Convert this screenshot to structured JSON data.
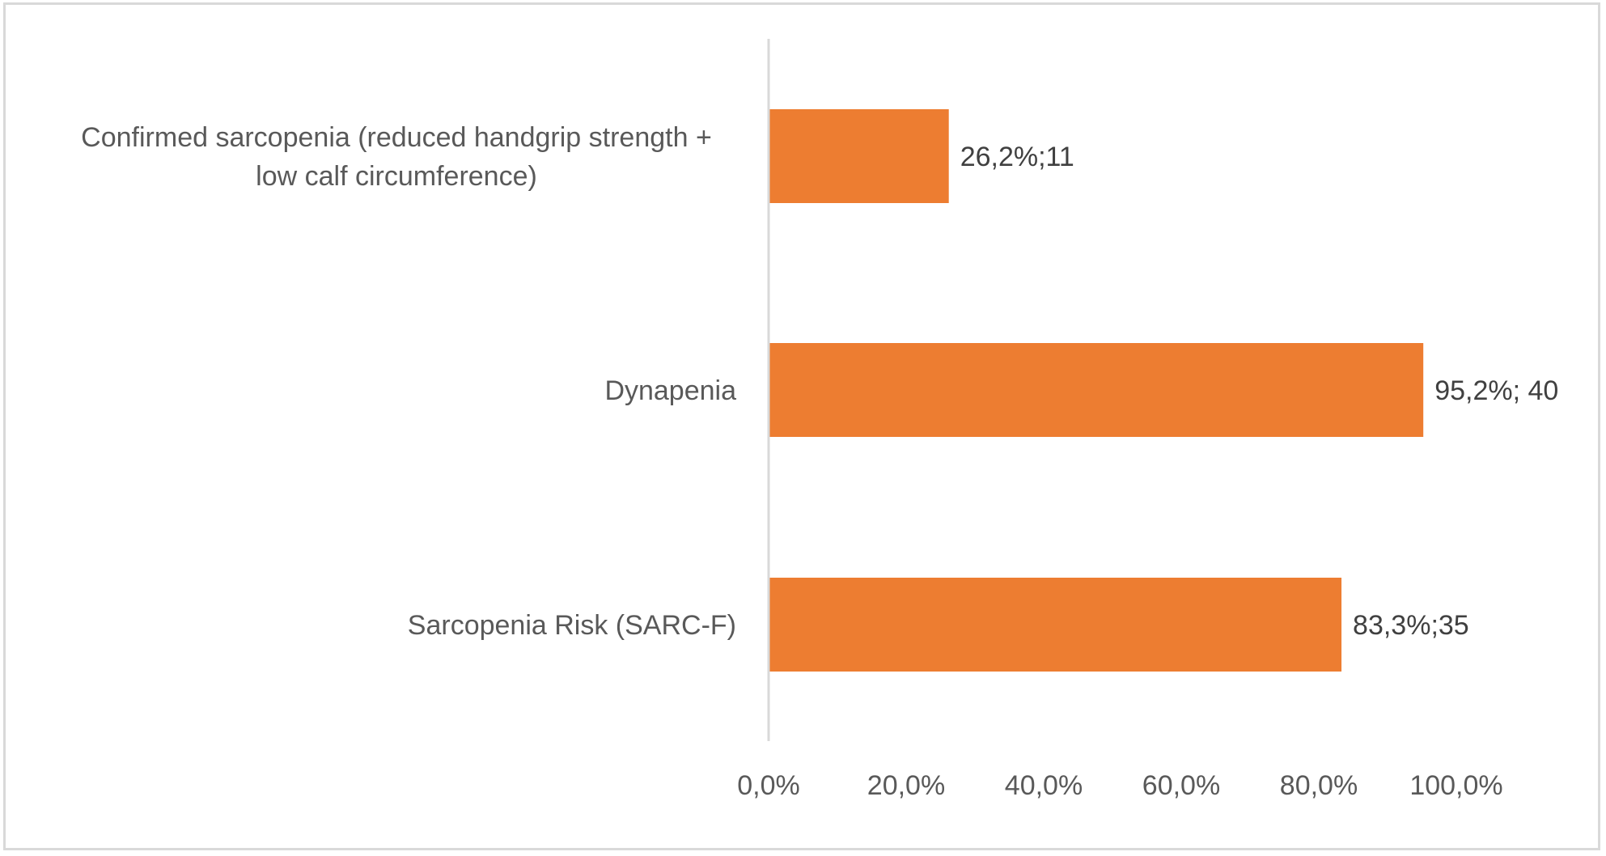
{
  "chart_data": {
    "type": "bar",
    "orientation": "horizontal",
    "categories": [
      "Confirmed sarcopenia (reduced handgrip strength + low calf circumference)",
      "Dynapenia",
      "Sarcopenia Risk (SARC-F)"
    ],
    "category_label_lines": [
      [
        "Confirmed sarcopenia (reduced handgrip strength +",
        "low calf circumference)"
      ],
      [
        "Dynapenia"
      ],
      [
        "Sarcopenia Risk (SARC-F)"
      ]
    ],
    "values": [
      26.2,
      95.2,
      83.3
    ],
    "data_labels": [
      "26,2%;11",
      "95,2%; 40",
      "83,3%;35"
    ],
    "xlim": [
      0,
      100
    ],
    "x_ticks": [
      0,
      20,
      40,
      60,
      80,
      100
    ],
    "x_tick_labels": [
      "0,0%",
      "20,0%",
      "40,0%",
      "60,0%",
      "80,0%",
      "100,0%"
    ],
    "title": "",
    "xlabel": "",
    "ylabel": "",
    "grid": false,
    "legend": "none",
    "bar_color": "#ED7D31",
    "axis_color": "#d9d9d9"
  }
}
